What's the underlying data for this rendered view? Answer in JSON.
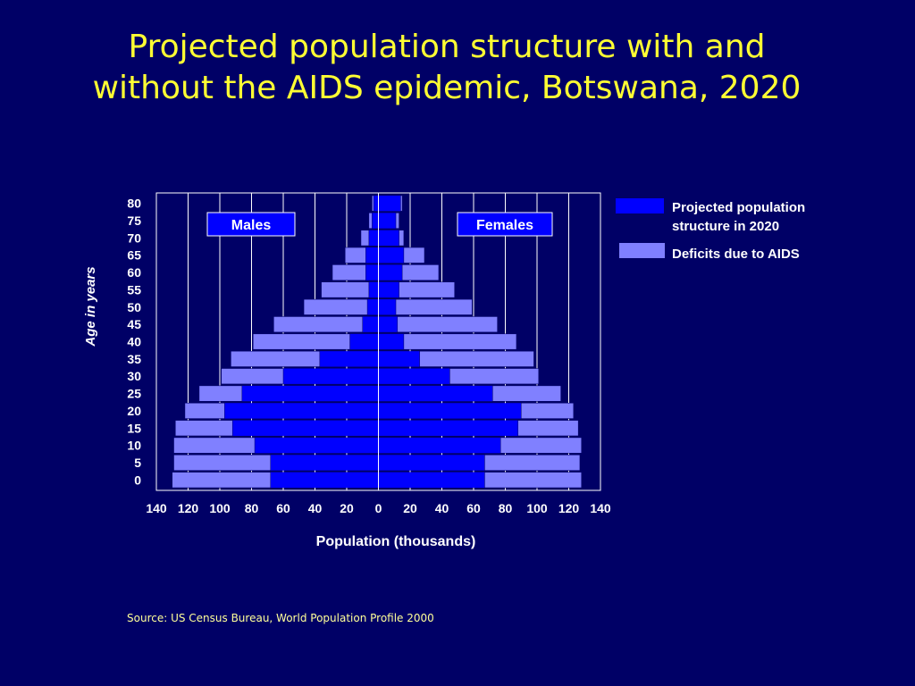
{
  "title_lines": [
    "Projected population structure with and",
    "without the AIDS epidemic, Botswana, 2020"
  ],
  "source": "Source: US Census Bureau, World Population Profile 2000",
  "colors": {
    "background": "#000066",
    "title": "#ffff33",
    "projected": "#0000ff",
    "deficit": "#8080ff",
    "text": "#ffffff"
  },
  "chart_data": {
    "type": "bar",
    "subtype": "population-pyramid",
    "xlabel": "Population (thousands)",
    "ylabel": "Age in years",
    "xlim": [
      -140,
      140
    ],
    "x_tick_labels": [
      "140",
      "120",
      "100",
      "80",
      "60",
      "40",
      "20",
      "0",
      "20",
      "40",
      "60",
      "80",
      "100",
      "120",
      "140"
    ],
    "y_tick_labels": [
      "0",
      "5",
      "10",
      "15",
      "20",
      "25",
      "30",
      "35",
      "40",
      "45",
      "50",
      "55",
      "60",
      "65",
      "70",
      "75",
      "80"
    ],
    "side_labels": {
      "left": "Males",
      "right": "Females"
    },
    "grid": "vertical",
    "legend_position": "right",
    "legend": [
      {
        "key": "projected",
        "label_lines": [
          "Projected population",
          "structure in 2020"
        ]
      },
      {
        "key": "deficit",
        "label_lines": [
          "Deficits due to AIDS"
        ]
      }
    ],
    "categories": [
      "0",
      "5",
      "10",
      "15",
      "20",
      "25",
      "30",
      "35",
      "40",
      "45",
      "50",
      "55",
      "60",
      "65",
      "70",
      "75",
      "80"
    ],
    "series": [
      {
        "name": "Projected population structure in 2020 — Males",
        "key": "projected",
        "side": "left",
        "values": [
          68,
          68,
          78,
          92,
          97,
          86,
          60,
          37,
          18,
          10,
          7,
          6,
          8,
          8,
          6,
          4,
          3
        ]
      },
      {
        "name": "Deficits due to AIDS — Males",
        "key": "deficit",
        "side": "left",
        "values": [
          62,
          61,
          51,
          36,
          25,
          27,
          39,
          56,
          61,
          56,
          40,
          30,
          21,
          13,
          5,
          2,
          1
        ]
      },
      {
        "name": "Projected population structure in 2020 — Females",
        "key": "projected",
        "side": "right",
        "values": [
          67,
          67,
          77,
          88,
          90,
          72,
          45,
          26,
          16,
          12,
          11,
          13,
          15,
          16,
          13,
          11,
          14
        ]
      },
      {
        "name": "Deficits due to AIDS — Females",
        "key": "deficit",
        "side": "right",
        "values": [
          61,
          60,
          51,
          38,
          33,
          43,
          56,
          72,
          71,
          63,
          48,
          35,
          23,
          13,
          3,
          2,
          1
        ]
      }
    ]
  }
}
